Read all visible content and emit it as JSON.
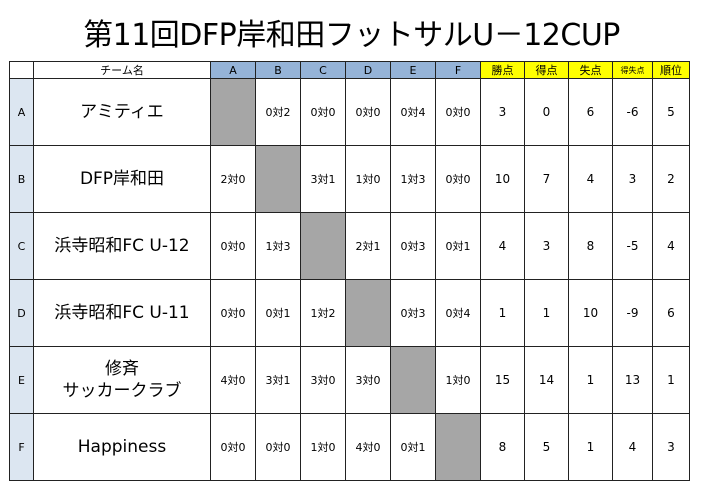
{
  "title": "第11回DFP岸和田フットサルU－12CUP",
  "headers": {
    "team": "チーム名",
    "opponents": [
      "A",
      "B",
      "C",
      "D",
      "E",
      "F"
    ],
    "stats": [
      "勝点",
      "得点",
      "失点",
      "得失点",
      "順位"
    ]
  },
  "rows": [
    {
      "label": "A",
      "team": "アミティエ",
      "results": [
        "",
        "0対2",
        "0対0",
        "0対0",
        "0対4",
        "0対0"
      ],
      "stats": [
        "3",
        "0",
        "6",
        "-6",
        "5"
      ]
    },
    {
      "label": "B",
      "team": "DFP岸和田",
      "results": [
        "2対0",
        "",
        "3対1",
        "1対0",
        "1対3",
        "0対0"
      ],
      "stats": [
        "10",
        "7",
        "4",
        "3",
        "2"
      ]
    },
    {
      "label": "C",
      "team": "浜寺昭和FC U-12",
      "results": [
        "0対0",
        "1対3",
        "",
        "2対1",
        "0対3",
        "0対1"
      ],
      "stats": [
        "4",
        "3",
        "8",
        "-5",
        "4"
      ]
    },
    {
      "label": "D",
      "team": "浜寺昭和FC U-11",
      "results": [
        "0対0",
        "0対1",
        "1対2",
        "",
        "0対3",
        "0対4"
      ],
      "stats": [
        "1",
        "1",
        "10",
        "-9",
        "6"
      ]
    },
    {
      "label": "E",
      "team": "修斉",
      "team2": "サッカークラブ",
      "results": [
        "4対0",
        "3対1",
        "3対0",
        "3対0",
        "",
        "1対0"
      ],
      "stats": [
        "15",
        "14",
        "1",
        "13",
        "1"
      ]
    },
    {
      "label": "F",
      "team": "Happiness",
      "results": [
        "0対0",
        "0対0",
        "1対0",
        "4対0",
        "0対1",
        ""
      ],
      "stats": [
        "8",
        "5",
        "1",
        "4",
        "3"
      ]
    }
  ],
  "colors": {
    "opponent_header": "#95b3d7",
    "stat_header": "#ffff00",
    "row_label": "#dce6f1",
    "self_match": "#a6a6a6"
  }
}
